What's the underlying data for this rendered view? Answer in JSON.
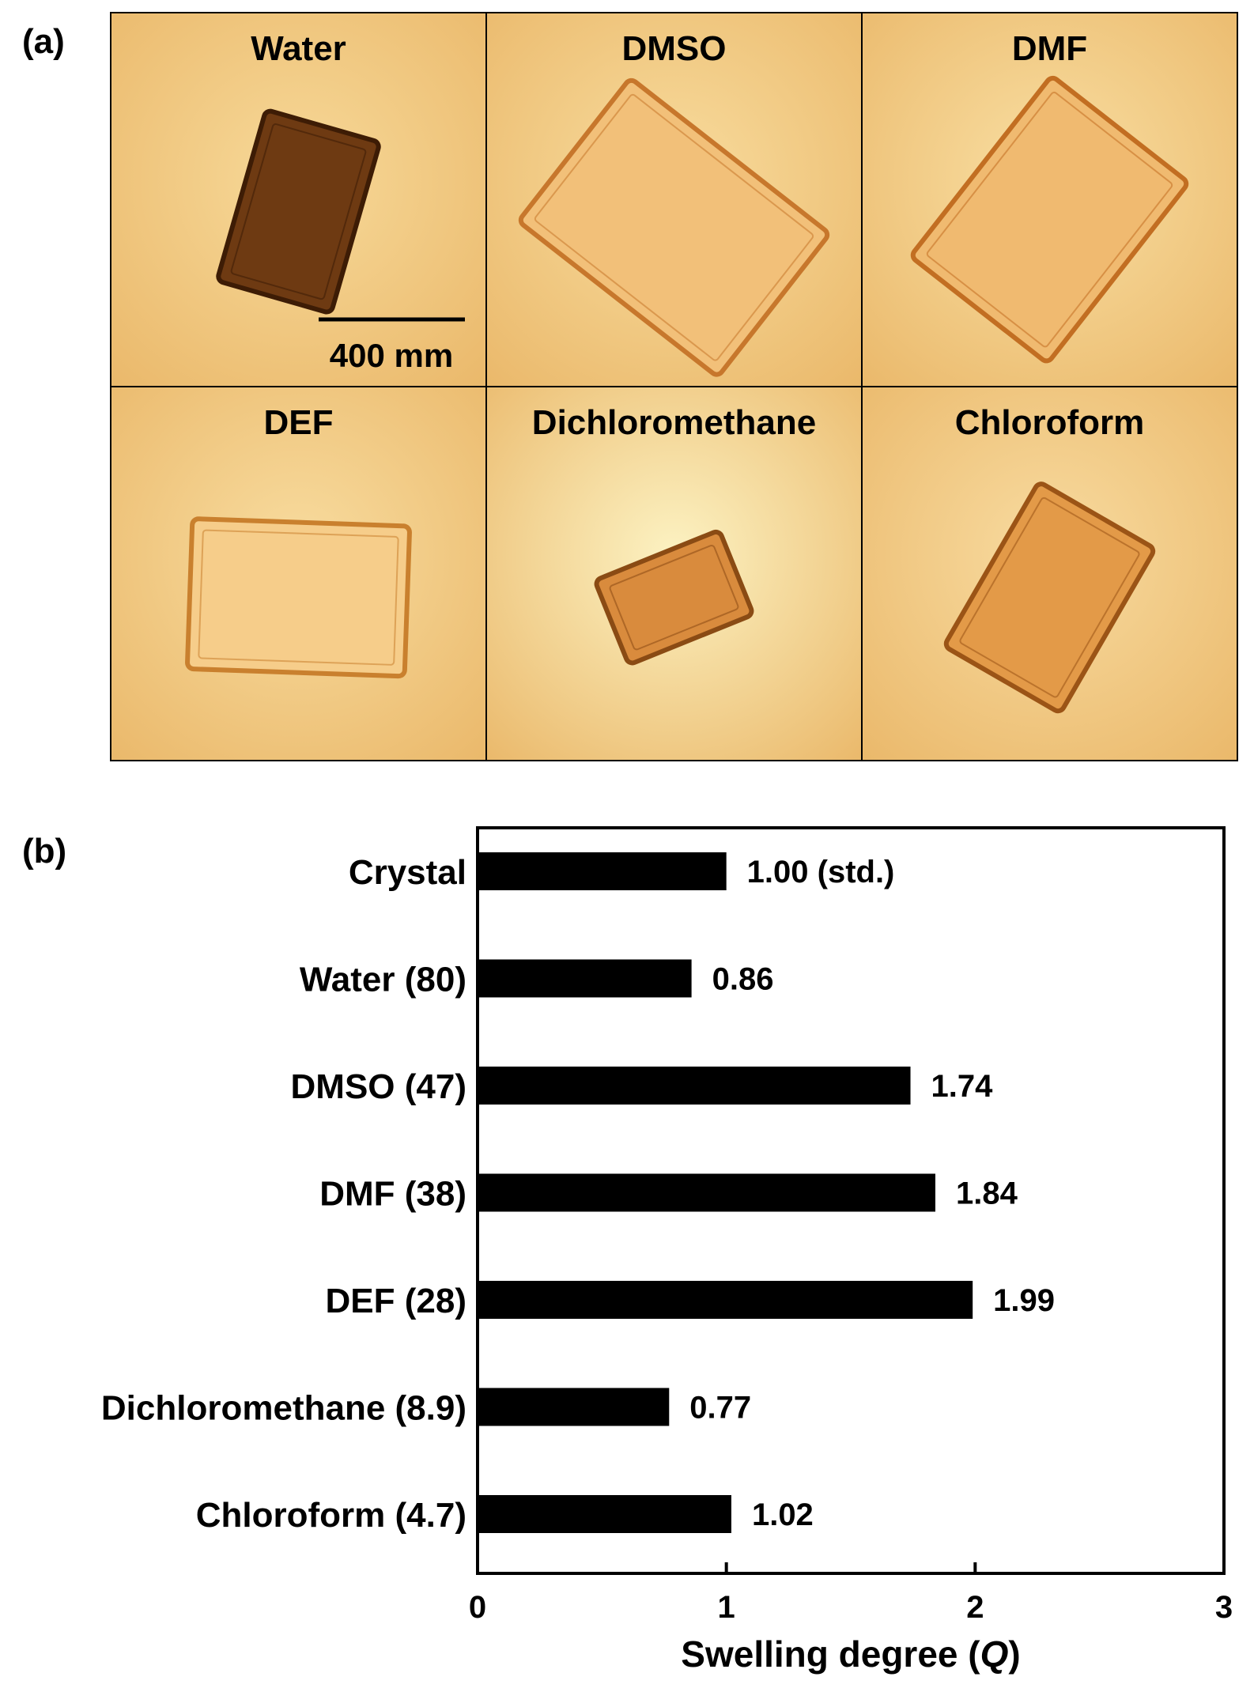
{
  "panels": {
    "a_label": "(a)",
    "b_label": "(b)"
  },
  "micrographs": {
    "cells": [
      {
        "title": "Water",
        "bg": "#f7d999",
        "crystal": "#6e3a12",
        "edge": "#3d1c05",
        "angle": 16,
        "w": 150,
        "h": 225,
        "cx": 175,
        "cy": 250
      },
      {
        "title": "DMSO",
        "bg": "#f8dc9e",
        "crystal": "#f2c079",
        "edge": "#c7772c",
        "angle": -52,
        "w": 230,
        "h": 320,
        "cx": 175,
        "cy": 270
      },
      {
        "title": "DMF",
        "bg": "#f9dfa3",
        "crystal": "#f0ba70",
        "edge": "#c26e22",
        "angle": 38,
        "w": 220,
        "h": 290,
        "cx": 175,
        "cy": 260
      },
      {
        "title": "DEF",
        "bg": "#f8dc9f",
        "crystal": "#f6cd8a",
        "edge": "#c9802e",
        "angle": 2,
        "w": 275,
        "h": 190,
        "cx": 175,
        "cy": 265
      },
      {
        "title": "Dichloromethane",
        "bg": "#fcf2c2",
        "crystal": "#d98b3d",
        "edge": "#8a4b14",
        "angle": -22,
        "w": 170,
        "h": 115,
        "cx": 175,
        "cy": 265
      },
      {
        "title": "Chloroform",
        "bg": "#f8dba0",
        "crystal": "#e39a48",
        "edge": "#9b5416",
        "angle": 30,
        "w": 170,
        "h": 240,
        "cx": 175,
        "cy": 265
      }
    ],
    "scale_bar_label": "400 mm"
  },
  "chart_data": {
    "type": "bar",
    "orientation": "horizontal",
    "categories": [
      "Crystal",
      "Water (80)",
      "DMSO (47)",
      "DMF (38)",
      "DEF (28)",
      "Dichloromethane (8.9)",
      "Chloroform (4.7)"
    ],
    "values": [
      1.0,
      0.86,
      1.74,
      1.84,
      1.99,
      0.77,
      1.02
    ],
    "value_labels": [
      "1.00 (std.)",
      "0.86",
      "1.74",
      "1.84",
      "1.99",
      "0.77",
      "1.02"
    ],
    "xlabel_main": "Swelling degree (",
    "xlabel_var": "Q",
    "xlabel_end": ")",
    "xlim": [
      0,
      3
    ],
    "xticks": [
      "0",
      "1",
      "2",
      "3"
    ],
    "bar_color": "#000000",
    "grid": false
  }
}
